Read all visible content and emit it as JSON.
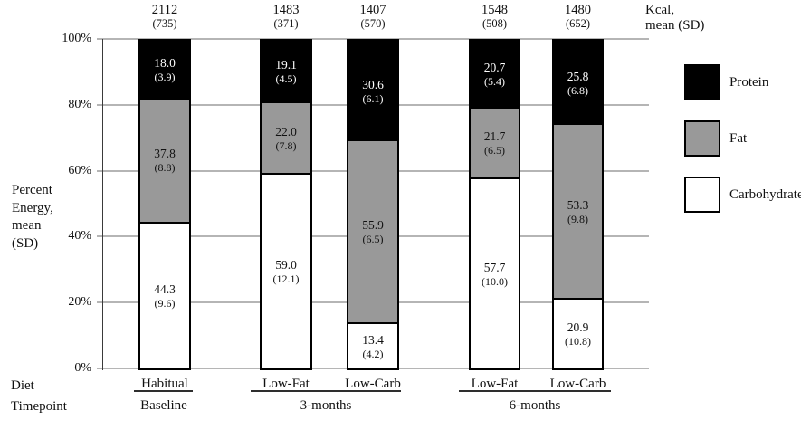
{
  "chart_data": {
    "type": "bar",
    "stacked": true,
    "ylabel_lines": [
      "Percent",
      "Energy,",
      "mean",
      "(SD)"
    ],
    "kcal_header_lines": [
      "Kcal,",
      "mean (SD)"
    ],
    "y_ticks": [
      "100%",
      "80%",
      "60%",
      "40%",
      "20%",
      "0%"
    ],
    "ylim": [
      0,
      100
    ],
    "grid": true,
    "legend_position": "right",
    "legend": [
      {
        "label": "Protein",
        "color": "#000000"
      },
      {
        "label": "Fat",
        "color": "#999999"
      },
      {
        "label": "Carbohydrate",
        "color": "#ffffff"
      }
    ],
    "row_labels": {
      "diet": "Diet",
      "timepoint": "Timepoint"
    },
    "bars": [
      {
        "diet": "Habitual",
        "kcal": {
          "mean": "2112",
          "sd": "(735)"
        },
        "carbohydrate": {
          "mean": "44.3",
          "sd": "(9.6)"
        },
        "fat": {
          "mean": "37.8",
          "sd": "(8.8)"
        },
        "protein": {
          "mean": "18.0",
          "sd": "(3.9)"
        }
      },
      {
        "diet": "Low-Fat",
        "kcal": {
          "mean": "1483",
          "sd": "(371)"
        },
        "carbohydrate": {
          "mean": "59.0",
          "sd": "(12.1)"
        },
        "fat": {
          "mean": "22.0",
          "sd": "(7.8)"
        },
        "protein": {
          "mean": "19.1",
          "sd": "(4.5)"
        }
      },
      {
        "diet": "Low-Carb",
        "kcal": {
          "mean": "1407",
          "sd": "(570)"
        },
        "carbohydrate": {
          "mean": "13.4",
          "sd": "(4.2)"
        },
        "fat": {
          "mean": "55.9",
          "sd": "(6.5)"
        },
        "protein": {
          "mean": "30.6",
          "sd": "(6.1)"
        }
      },
      {
        "diet": "Low-Fat",
        "kcal": {
          "mean": "1548",
          "sd": "(508)"
        },
        "carbohydrate": {
          "mean": "57.7",
          "sd": "(10.0)"
        },
        "fat": {
          "mean": "21.7",
          "sd": "(6.5)"
        },
        "protein": {
          "mean": "20.7",
          "sd": "(5.4)"
        }
      },
      {
        "diet": "Low-Carb",
        "kcal": {
          "mean": "1480",
          "sd": "(652)"
        },
        "carbohydrate": {
          "mean": "20.9",
          "sd": "(10.8)"
        },
        "fat": {
          "mean": "53.3",
          "sd": "(9.8)"
        },
        "protein": {
          "mean": "25.8",
          "sd": "(6.8)"
        }
      }
    ],
    "groups": [
      {
        "timepoint": "Baseline",
        "bar_indices": [
          0
        ]
      },
      {
        "timepoint": "3-months",
        "bar_indices": [
          1,
          2
        ]
      },
      {
        "timepoint": "6-months",
        "bar_indices": [
          3,
          4
        ]
      }
    ]
  }
}
